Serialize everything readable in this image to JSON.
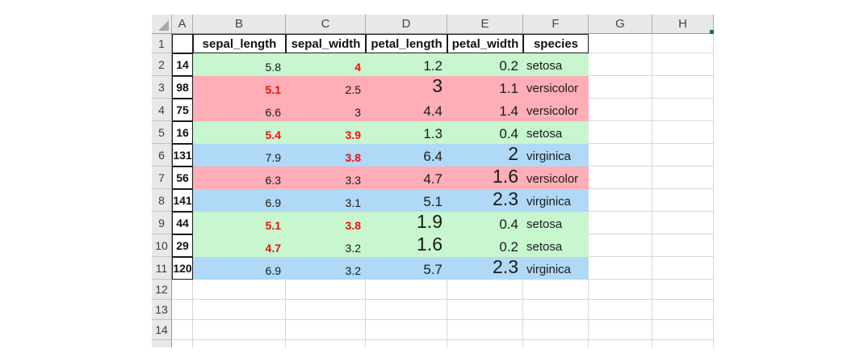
{
  "sheet": {
    "title": "iris-sample-spreadsheet",
    "column_headers": [
      "A",
      "B",
      "C",
      "D",
      "E",
      "F",
      "G",
      "H"
    ],
    "first_row_number": "1",
    "header_row": [
      "sepal_length",
      "sepal_width",
      "petal_length",
      "petal_width",
      "species"
    ],
    "colors": {
      "setosa": "#c7f6cf",
      "versicolor": "#ffadb6",
      "virginica": "#afd9f6",
      "red_value": "#f20d0d",
      "sliver_green": "#1e7145"
    },
    "rows": [
      {
        "n": "2",
        "id": "14",
        "species": "setosa",
        "values": [
          {
            "v": "5.8",
            "size": "s"
          },
          {
            "v": "4",
            "size": "s",
            "red": true
          },
          {
            "v": "1.2",
            "size": "m"
          },
          {
            "v": "0.2",
            "size": "m"
          }
        ]
      },
      {
        "n": "3",
        "id": "98",
        "species": "versicolor",
        "values": [
          {
            "v": "5.1",
            "size": "s",
            "red": true
          },
          {
            "v": "2.5",
            "size": "s"
          },
          {
            "v": "3",
            "size": "l"
          },
          {
            "v": "1.1",
            "size": "m"
          }
        ]
      },
      {
        "n": "4",
        "id": "75",
        "species": "versicolor",
        "values": [
          {
            "v": "6.6",
            "size": "s"
          },
          {
            "v": "3",
            "size": "s"
          },
          {
            "v": "4.4",
            "size": "m"
          },
          {
            "v": "1.4",
            "size": "m"
          }
        ]
      },
      {
        "n": "5",
        "id": "16",
        "species": "setosa",
        "values": [
          {
            "v": "5.4",
            "size": "s",
            "red": true
          },
          {
            "v": "3.9",
            "size": "s",
            "red": true
          },
          {
            "v": "1.3",
            "size": "m"
          },
          {
            "v": "0.4",
            "size": "m"
          }
        ]
      },
      {
        "n": "6",
        "id": "131",
        "species": "virginica",
        "values": [
          {
            "v": "7.9",
            "size": "s"
          },
          {
            "v": "3.8",
            "size": "s",
            "red": true
          },
          {
            "v": "6.4",
            "size": "m"
          },
          {
            "v": "2",
            "size": "l"
          }
        ]
      },
      {
        "n": "7",
        "id": "56",
        "species": "versicolor",
        "values": [
          {
            "v": "6.3",
            "size": "s"
          },
          {
            "v": "3.3",
            "size": "s"
          },
          {
            "v": "4.7",
            "size": "m"
          },
          {
            "v": "1.6",
            "size": "l"
          }
        ]
      },
      {
        "n": "8",
        "id": "141",
        "species": "virginica",
        "values": [
          {
            "v": "6.9",
            "size": "s"
          },
          {
            "v": "3.1",
            "size": "s"
          },
          {
            "v": "5.1",
            "size": "m"
          },
          {
            "v": "2.3",
            "size": "l"
          }
        ]
      },
      {
        "n": "9",
        "id": "44",
        "species": "setosa",
        "values": [
          {
            "v": "5.1",
            "size": "s",
            "red": true
          },
          {
            "v": "3.8",
            "size": "s",
            "red": true
          },
          {
            "v": "1.9",
            "size": "l"
          },
          {
            "v": "0.4",
            "size": "m"
          }
        ]
      },
      {
        "n": "10",
        "id": "29",
        "species": "setosa",
        "values": [
          {
            "v": "4.7",
            "size": "s",
            "red": true
          },
          {
            "v": "3.2",
            "size": "s"
          },
          {
            "v": "1.6",
            "size": "l"
          },
          {
            "v": "0.2",
            "size": "m"
          }
        ]
      },
      {
        "n": "11",
        "id": "120",
        "species": "virginica",
        "values": [
          {
            "v": "6.9",
            "size": "s"
          },
          {
            "v": "3.2",
            "size": "s"
          },
          {
            "v": "5.7",
            "size": "m"
          },
          {
            "v": "2.3",
            "size": "l"
          }
        ]
      }
    ],
    "empty_row_numbers": [
      "12",
      "13",
      "14"
    ]
  }
}
